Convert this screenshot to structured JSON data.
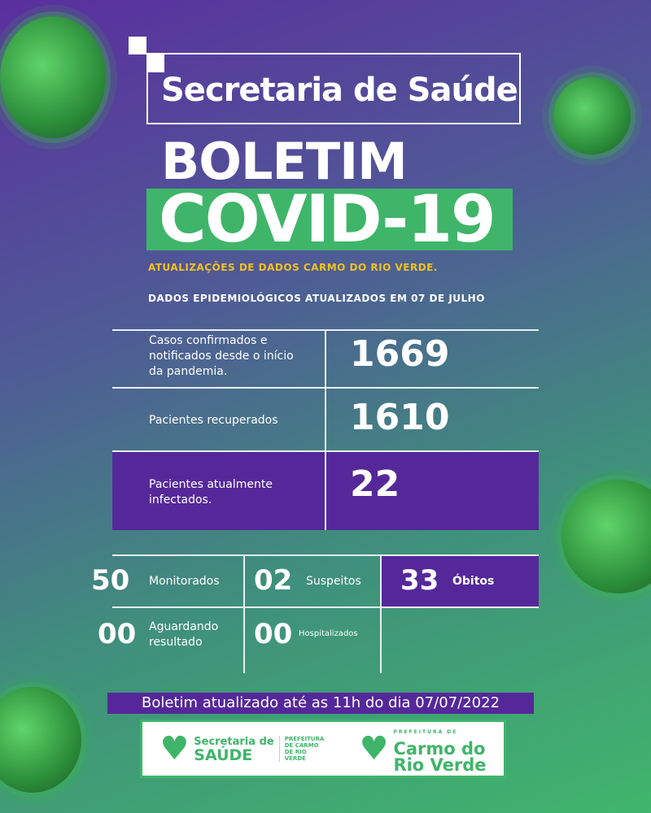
{
  "header": {
    "org": "Secretaria de Saúde",
    "title1": "BOLETIM",
    "title2": "COVID-19",
    "subtitle": "ATUALIZAÇÕES DE DADOS CARMO DO RIO VERDE.",
    "date_line": "DADOS EPIDEMIOLÓGICOS ATUALIZADOS EM 07 DE JULHO"
  },
  "stats": [
    {
      "label": "Casos confirmados e notificados desde o início da pandemia.",
      "value": "1669"
    },
    {
      "label": "Pacientes recuperados",
      "value": "1610"
    },
    {
      "label": "Pacientes atualmente infectados.",
      "value": "22"
    }
  ],
  "grid": [
    {
      "value": "50",
      "label": "Monitorados"
    },
    {
      "value": "02",
      "label": "Suspeitos"
    },
    {
      "value": "33",
      "label": "Óbitos"
    },
    {
      "value": "00",
      "label": "Aguardando resultado"
    },
    {
      "value": "00",
      "label": "Hospitalizados"
    }
  ],
  "footer": {
    "updated": "Boletim atualizado até as 11h do dia 07/07/2022"
  },
  "logos": {
    "left_line1": "Secretaria de",
    "left_line2": "SAÚDE",
    "left_small": "PREFEITURA DE CARMO DE RIO VERDE",
    "right_small": "PREFEITURA DE",
    "right_line1": "Carmo do",
    "right_line2": "Rio Verde"
  },
  "colors": {
    "purple": "#55289a",
    "green": "#3fb56a",
    "yellow": "#f3c21c"
  }
}
